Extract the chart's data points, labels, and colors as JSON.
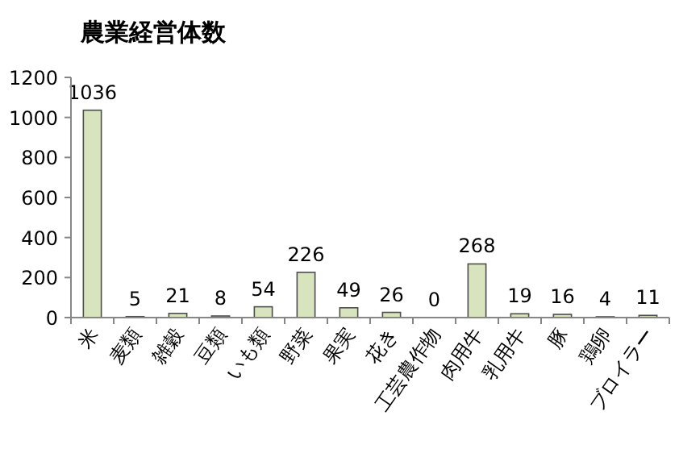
{
  "chart_data": {
    "type": "bar",
    "title": "農業経営体数",
    "categories": [
      "米",
      "麦類",
      "雑穀",
      "豆類",
      "いも類",
      "野菜",
      "果実",
      "花き",
      "工芸農作物",
      "肉用牛",
      "乳用牛",
      "豚",
      "鶏卵",
      "ブロイラー"
    ],
    "values": [
      1036,
      5,
      21,
      8,
      54,
      226,
      49,
      26,
      0,
      268,
      19,
      16,
      4,
      11
    ],
    "color": "#d7e4bd",
    "ylim": [
      0,
      1200
    ],
    "yticks": [
      0,
      200,
      400,
      600,
      800,
      1000,
      1200
    ],
    "data_labels": true
  }
}
